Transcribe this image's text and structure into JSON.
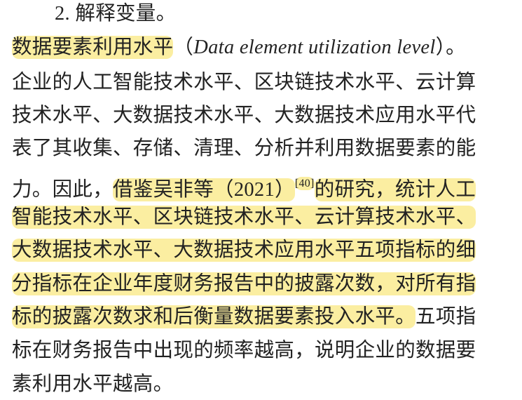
{
  "lines": [
    [
      {
        "text": "2. 解释变量。"
      }
    ],
    [
      {
        "text": "数据要素利用水平",
        "highlight": true
      },
      {
        "text": "（"
      },
      {
        "text": "Data element utilization level",
        "style": "italic"
      },
      {
        "text": "）。"
      }
    ],
    [
      {
        "text": "企业的人工智能技术水平、区块链技术水平、云计算"
      }
    ],
    [
      {
        "text": "技术水平、大数据技术水平、大数据技术应用水平代"
      }
    ],
    [
      {
        "text": "表了其收集、存储、清理、分析并利用数据要素的能"
      }
    ],
    [
      {
        "text": "力。因此，"
      },
      {
        "text": "借鉴吴非等（2021）",
        "highlight": true
      },
      {
        "text": "[40]",
        "highlight": true,
        "style": "superscript"
      },
      {
        "text": "的研究，统计人工",
        "highlight": true
      }
    ],
    [
      {
        "text": "智能技术水平、区块链技术水平、云计算技术水平、",
        "highlight": true
      }
    ],
    [
      {
        "text": "大数据技术水平、大数据技术应用水平五项指标的细",
        "highlight": true
      }
    ],
    [
      {
        "text": "分指标在企业年度财务报告中的披露次数，对所有指",
        "highlight": true
      }
    ],
    [
      {
        "text": "标的披露次数求和后衡量数据要素投入水平。",
        "highlight": true
      },
      {
        "text": "五项指"
      }
    ],
    [
      {
        "text": "标在财务报告中出现的频率越高，说明企业的数据要"
      }
    ],
    [
      {
        "text": "素利用水平越高。"
      }
    ]
  ]
}
